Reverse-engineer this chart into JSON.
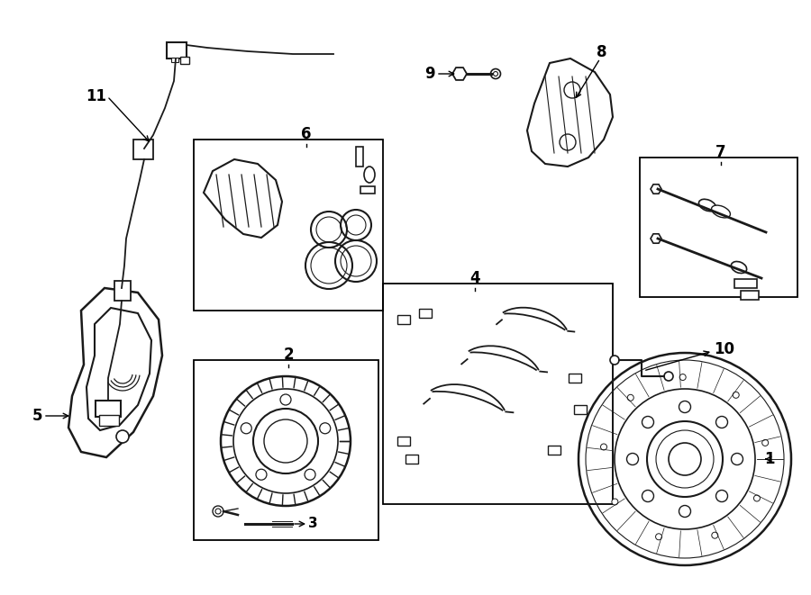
{
  "background_color": "#ffffff",
  "line_color": "#1a1a1a",
  "figsize": [
    9.0,
    6.61
  ],
  "dpi": 100,
  "xlim": [
    0,
    900
  ],
  "ylim": [
    0,
    661
  ]
}
